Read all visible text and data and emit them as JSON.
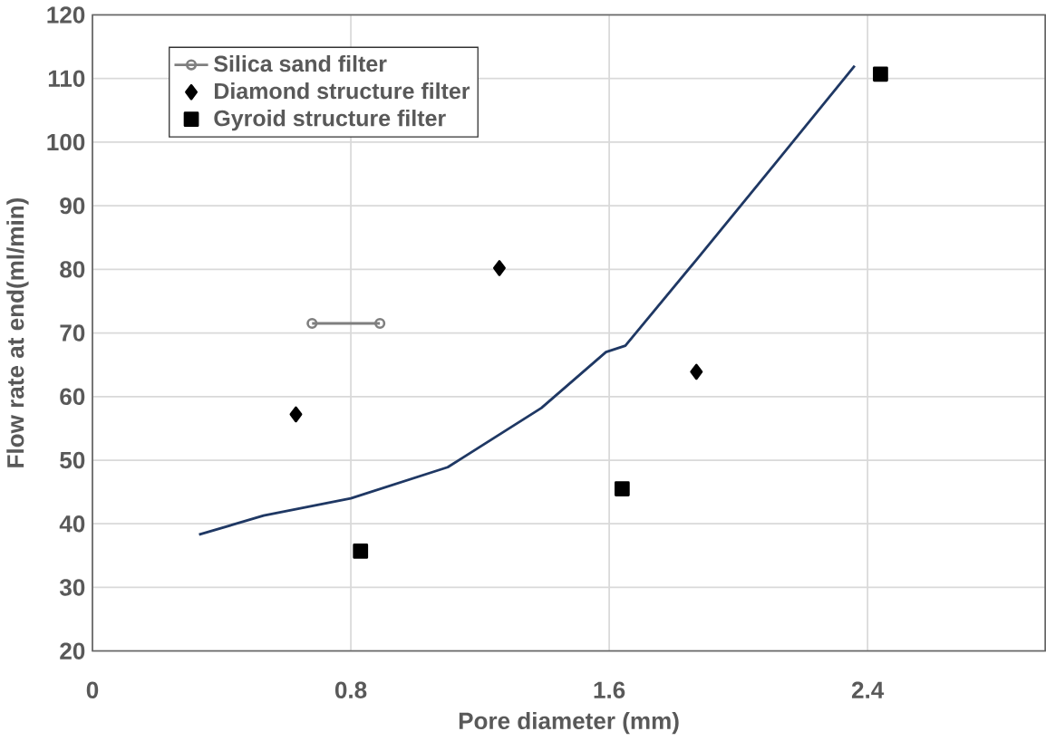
{
  "chart_data": {
    "type": "scatter",
    "xlabel": "Pore diameter (mm)",
    "ylabel": "Flow rate at end(ml/min)",
    "xlim": [
      0,
      2.95
    ],
    "ylim": [
      20,
      120
    ],
    "xticks": [
      0,
      0.8,
      1.6,
      2.4
    ],
    "yticks": [
      20,
      30,
      40,
      50,
      60,
      70,
      80,
      90,
      100,
      110,
      120
    ],
    "grid": true,
    "legend": "top left",
    "series": [
      {
        "name": "Silica sand filter",
        "type": "line",
        "marker": "circle",
        "color": "#7f7f7f",
        "x": [
          0.68,
          0.89
        ],
        "values": [
          71.5,
          71.5
        ]
      },
      {
        "name": "Diamond structure filter",
        "marker": "diamond",
        "color": "#000000",
        "x": [
          0.63,
          1.26,
          1.87
        ],
        "values": [
          57.2,
          80.2,
          63.9
        ]
      },
      {
        "name": "Gyroid structure filter",
        "marker": "square",
        "color": "#000000",
        "x": [
          0.83,
          1.64,
          2.44
        ],
        "values": [
          35.7,
          45.5,
          110.7
        ]
      },
      {
        "type": "line",
        "marker": "none",
        "color": "#1f3864",
        "x": [
          0.33,
          0.53,
          0.8,
          1.1,
          1.39,
          1.59,
          1.65,
          1.87,
          2.12,
          2.36
        ],
        "values": [
          38.3,
          41.3,
          44.0,
          48.9,
          58.2,
          67.0,
          68.0,
          81.5,
          97.0,
          112.0
        ]
      }
    ]
  }
}
